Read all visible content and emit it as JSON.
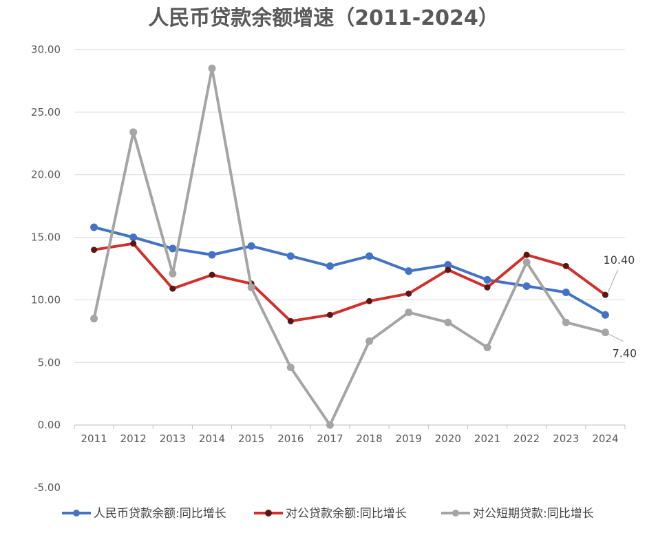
{
  "chart_data": {
    "type": "line",
    "title": "人民币贷款余额增速（2011-2024）",
    "xlabel": "",
    "ylabel": "",
    "categories": [
      "2011",
      "2012",
      "2013",
      "2014",
      "2015",
      "2016",
      "2017",
      "2018",
      "2019",
      "2020",
      "2021",
      "2022",
      "2023",
      "2024"
    ],
    "ylim": [
      -5,
      30
    ],
    "yticks": [
      -5,
      0,
      5,
      10,
      15,
      20,
      25,
      30
    ],
    "ytick_labels": [
      "-5.00",
      "0.00",
      "5.00",
      "10.00",
      "15.00",
      "20.00",
      "25.00",
      "30.00"
    ],
    "grid": true,
    "legend_position": "bottom",
    "series": [
      {
        "name": "人民币贷款余额:同比增长",
        "color": "#4472C4",
        "marker_color": "#4472C4",
        "values": [
          15.8,
          15.0,
          14.1,
          13.6,
          14.3,
          13.5,
          12.7,
          13.5,
          12.3,
          12.8,
          11.6,
          11.1,
          10.6,
          8.8
        ]
      },
      {
        "name": "对公贷款余额:同比增长",
        "color": "#D0302B",
        "marker_color": "#5C1515",
        "values": [
          14.0,
          14.5,
          10.9,
          12.0,
          11.3,
          8.3,
          8.8,
          9.9,
          10.5,
          12.4,
          11.0,
          13.6,
          12.7,
          10.4
        ]
      },
      {
        "name": "对公短期贷款:同比增长",
        "color": "#A5A5A5",
        "marker_color": "#A5A5A5",
        "values": [
          8.5,
          23.4,
          12.1,
          28.5,
          11.0,
          4.6,
          0.0,
          6.7,
          9.0,
          8.2,
          6.2,
          13.0,
          8.2,
          7.4
        ]
      }
    ],
    "annotations": [
      {
        "text": "10.40",
        "series": 1,
        "index": 13
      },
      {
        "text": "7.40",
        "series": 2,
        "index": 13
      }
    ]
  }
}
